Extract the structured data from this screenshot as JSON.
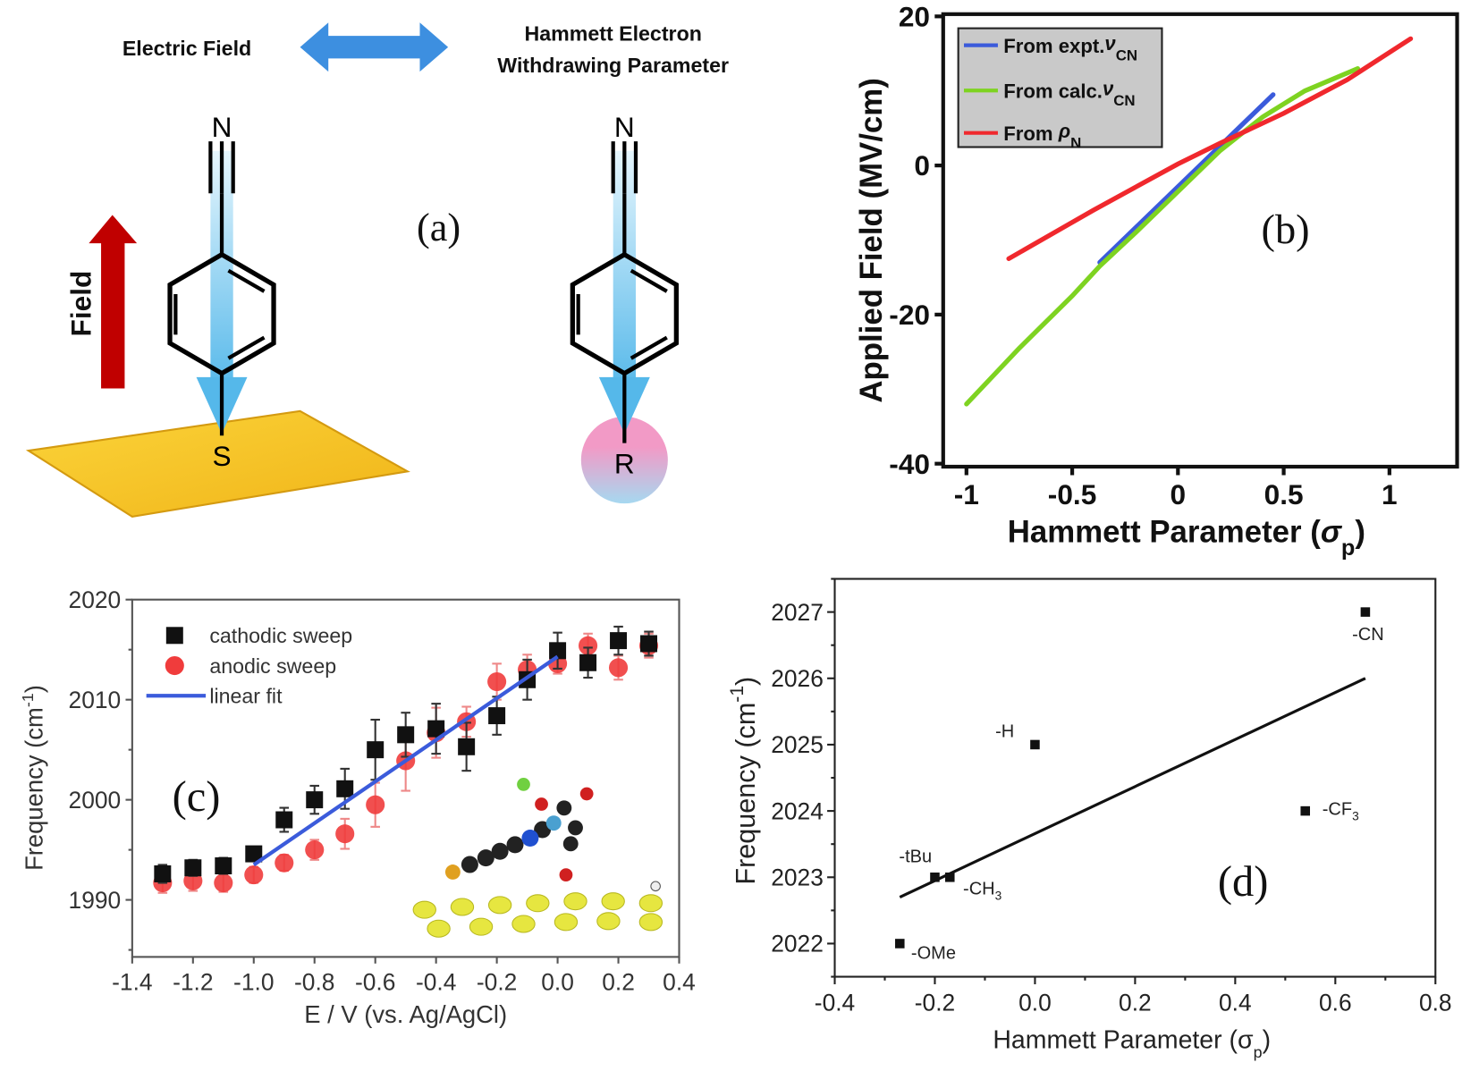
{
  "panel_a": {
    "label": "(a)",
    "left_caption": "Electric Field",
    "right_caption_line1": "Hammett Electron",
    "right_caption_line2": "Withdrawing Parameter",
    "field_label": "Field",
    "atom_n_left": "N",
    "atom_s": "S",
    "atom_n_right": "N",
    "atom_r": "R",
    "colors": {
      "double_arrow": "#3d8fe0",
      "field_arrow": "#c00000",
      "gold_surface": "#f5c518",
      "dipole_arrow": "#8fd0f0",
      "r_group_top": "#f29ac6",
      "r_group_bottom": "#a6d8f0"
    }
  },
  "chart_data": [
    {
      "id": "b",
      "type": "line",
      "panel_label": "(b)",
      "xlabel": "Hammett Parameter (σp)",
      "xlabel_main": "Hammett Parameter (",
      "xlabel_sym": "σ",
      "xlabel_sub": "p",
      "xlabel_end": ")",
      "ylabel": "Applied Field (MV/cm)",
      "xlim": [
        -1.11,
        1.32
      ],
      "ylim": [
        -40.4,
        20.3
      ],
      "xticks": [
        -1,
        -0.5,
        0,
        0.5,
        1
      ],
      "xtick_labels": [
        "-1",
        "-0.5",
        "0",
        "0.5",
        "1"
      ],
      "yticks": [
        20,
        0,
        -20,
        -40
      ],
      "ytick_labels": [
        "20",
        "0",
        "-20",
        "-40"
      ],
      "grid": false,
      "legend_position": "top-left",
      "series": [
        {
          "name": "From expt.νCN",
          "label_main": "From expt.",
          "label_sym": "ν",
          "label_sub": "CN",
          "color": "#3b5bdb",
          "points": [
            [
              -0.37,
              -13
            ],
            [
              0.45,
              9.5
            ]
          ]
        },
        {
          "name": "From calc.νCN",
          "label_main": "From calc.",
          "label_sym": "ν",
          "label_sub": "CN",
          "color": "#7ed321",
          "points": [
            [
              -1,
              -32
            ],
            [
              -0.75,
              -24.5
            ],
            [
              -0.5,
              -17.5
            ],
            [
              -0.37,
              -13.5
            ],
            [
              -0.2,
              -9
            ],
            [
              0,
              -3.5
            ],
            [
              0.2,
              2
            ],
            [
              0.4,
              6.5
            ],
            [
              0.6,
              10
            ],
            [
              0.85,
              13
            ]
          ]
        },
        {
          "name": "From ρN",
          "label_main": "From ",
          "label_sym": "ρ",
          "label_sub": "N",
          "color": "#f0282d",
          "points": [
            [
              -0.8,
              -12.5
            ],
            [
              -0.4,
              -6
            ],
            [
              0,
              0.2
            ],
            [
              0.2,
              3
            ],
            [
              0.5,
              7
            ],
            [
              0.8,
              11.5
            ],
            [
              1.1,
              17
            ]
          ]
        }
      ]
    },
    {
      "id": "c",
      "type": "scatter",
      "panel_label": "(c)",
      "xlabel": "E / V (vs. Ag/AgCl)",
      "ylabel": "Frequency (cm-1)",
      "ylabel_main": "Frequency (cm",
      "ylabel_sup": "-1",
      "ylabel_end": ")",
      "xlim": [
        -1.4,
        0.4
      ],
      "ylim": [
        1984.3,
        2020
      ],
      "xticks": [
        -1.4,
        -1.2,
        -1.0,
        -0.8,
        -0.6,
        -0.4,
        -0.2,
        0.0,
        0.2,
        0.4
      ],
      "xtick_labels": [
        "-1.4",
        "-1.2",
        "-1.0",
        "-0.8",
        "-0.6",
        "-0.4",
        "-0.2",
        "0.0",
        "0.2",
        "0.4"
      ],
      "yticks": [
        1990,
        2000,
        2010,
        2020
      ],
      "ytick_labels": [
        "1990",
        "2000",
        "2010",
        "2020"
      ],
      "grid": false,
      "legend_position": "top-left",
      "x": [
        -1.3,
        -1.2,
        -1.1,
        -1.0,
        -0.9,
        -0.8,
        -0.7,
        -0.6,
        -0.5,
        -0.4,
        -0.3,
        -0.2,
        -0.1,
        0.0,
        0.1,
        0.2,
        0.3
      ],
      "series": [
        {
          "name": "cathodic sweep",
          "marker": "square",
          "color": "#111111",
          "values": [
            1992.6,
            1993.2,
            1993.4,
            1994.6,
            1998.0,
            2000.0,
            2001.1,
            2005.0,
            2006.5,
            2007.1,
            2005.3,
            2008.4,
            2012.0,
            2014.9,
            2013.7,
            2015.9,
            2015.6
          ],
          "errors": [
            0.9,
            0.8,
            0.8,
            0.7,
            1.2,
            1.4,
            2.0,
            3.0,
            2.2,
            2.5,
            2.4,
            1.9,
            2.0,
            1.8,
            1.5,
            1.4,
            1.2
          ]
        },
        {
          "name": "anodic sweep",
          "marker": "circle",
          "color": "#f03c3c",
          "values": [
            1991.7,
            1991.9,
            1991.7,
            1992.5,
            1993.7,
            1995.0,
            1996.6,
            1999.5,
            2003.9,
            2006.7,
            2007.8,
            2011.8,
            2013.0,
            2013.6,
            2015.4,
            2013.2,
            2015.4
          ],
          "errors": [
            1.0,
            1.0,
            0.9,
            0.8,
            0.8,
            1.0,
            1.5,
            2.2,
            3.0,
            2.5,
            1.5,
            1.8,
            1.5,
            1.0,
            1.2,
            1.2,
            1.2
          ]
        },
        {
          "name": "linear fit",
          "type": "line",
          "color": "#3b5bdb",
          "points": [
            [
              -1.0,
              1993.5
            ],
            [
              0.0,
              2014.3
            ]
          ]
        }
      ]
    },
    {
      "id": "d",
      "type": "scatter",
      "panel_label": "(d)",
      "xlabel": "Hammett Parameter (σp)",
      "xlabel_main": "Hammett Parameter (",
      "xlabel_sym": "σ",
      "xlabel_sub": "p",
      "xlabel_end": ")",
      "ylabel": "Frequency (cm-1)",
      "ylabel_main": "Frequency (cm",
      "ylabel_sup": "-1",
      "ylabel_end": ")",
      "xlim": [
        -0.4,
        0.8
      ],
      "ylim": [
        2021.5,
        2027.5
      ],
      "xticks": [
        -0.4,
        -0.2,
        0.0,
        0.2,
        0.4,
        0.6,
        0.8
      ],
      "xtick_labels": [
        "-0.4",
        "-0.2",
        "0.0",
        "0.2",
        "0.4",
        "0.6",
        "0.8"
      ],
      "yticks": [
        2022,
        2023,
        2024,
        2025,
        2026,
        2027
      ],
      "ytick_labels": [
        "2022",
        "2023",
        "2024",
        "2025",
        "2026",
        "2027"
      ],
      "grid": false,
      "points": [
        {
          "label": "-CN",
          "label_main": "-CN",
          "label_sub": "",
          "x": 0.66,
          "y": 2027
        },
        {
          "label": "-H",
          "label_main": "-H",
          "label_sub": "",
          "x": 0.0,
          "y": 2025
        },
        {
          "label": "-CF3",
          "label_main": "-CF",
          "label_sub": "3",
          "x": 0.54,
          "y": 2024
        },
        {
          "label": "-tBu",
          "label_main": "-tBu",
          "label_sub": "",
          "x": -0.2,
          "y": 2023
        },
        {
          "label": "-CH3",
          "label_main": "-CH",
          "label_sub": "3",
          "x": -0.17,
          "y": 2023
        },
        {
          "label": "-OMe",
          "label_main": "-OMe",
          "label_sub": "",
          "x": -0.27,
          "y": 2022
        }
      ],
      "fit_line": [
        [
          -0.27,
          2022.7
        ],
        [
          0.66,
          2026.0
        ]
      ]
    }
  ]
}
